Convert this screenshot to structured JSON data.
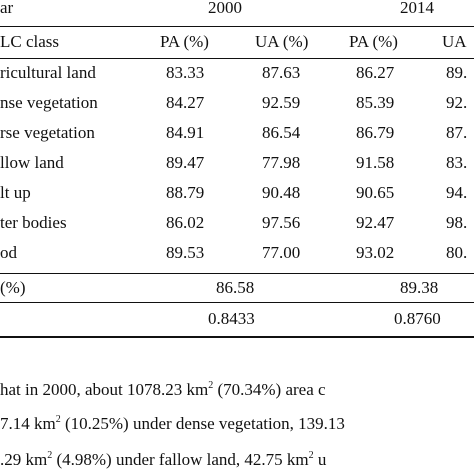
{
  "table": {
    "header": {
      "year_label": "ar",
      "year_1": "2000",
      "year_2": "2014",
      "class_label": "LC class",
      "pa_1": "PA (%)",
      "ua_1": "UA (%)",
      "pa_2": "PA (%)",
      "ua_2": "UA"
    },
    "rows": [
      {
        "name": "ricultural land",
        "pa2000": "83.33",
        "ua2000": "87.63",
        "pa2014": "86.27",
        "ua2014": "89."
      },
      {
        "name": "nse vegetation",
        "pa2000": "84.27",
        "ua2000": "92.59",
        "pa2014": "85.39",
        "ua2014": "92."
      },
      {
        "name": "rse vegetation",
        "pa2000": "84.91",
        "ua2000": "86.54",
        "pa2014": "86.79",
        "ua2014": "87."
      },
      {
        "name": "llow land",
        "pa2000": "89.47",
        "ua2000": "77.98",
        "pa2014": "91.58",
        "ua2014": "83."
      },
      {
        "name": "lt up",
        "pa2000": "88.79",
        "ua2000": "90.48",
        "pa2014": "90.65",
        "ua2014": "94."
      },
      {
        "name": "ter bodies",
        "pa2000": "86.02",
        "ua2000": "97.56",
        "pa2014": "92.47",
        "ua2014": "98."
      },
      {
        "name": "od",
        "pa2000": "89.53",
        "ua2000": "77.00",
        "pa2014": "93.02",
        "ua2014": "80."
      }
    ],
    "overall": {
      "label": "(%)",
      "v2000": "86.58",
      "v2014": "89.38"
    },
    "kappa": {
      "v2000": "0.8433",
      "v2014": "0.8760"
    }
  },
  "paragraph": {
    "line1_a": "hat  in  2000,  about  1078.23  km",
    "line1_sup": "2",
    "line1_b": " (70.34%)  area  c",
    "line2_a": "7.14  km",
    "line2_sup": "2",
    "line2_b": " (10.25%)  under  dense  vegetation,  139.13",
    "line3_a": ".29  km",
    "line3_sup": "2",
    "line3_b": " (4.98%)  under  fallow  land,  42.75  km",
    "line3_sup2": "2",
    "line3_c": " u"
  }
}
